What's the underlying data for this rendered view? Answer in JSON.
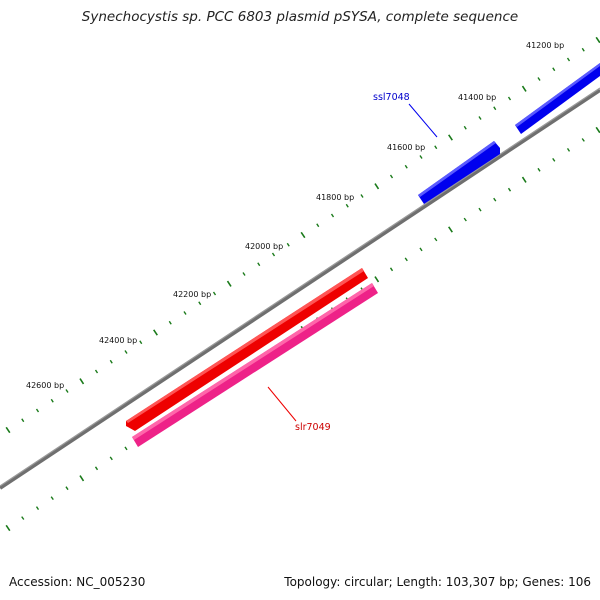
{
  "title": "Synechocystis sp. PCC 6803 plasmid pSYSA, complete sequence",
  "footer": {
    "accession": "Accession: NC_005230",
    "summary": "Topology: circular; Length: 103,307 bp; Genes: 106"
  },
  "colors": {
    "backbone": "#808080",
    "tick": "#1a7a1a",
    "forward_gene": "#0000ee",
    "reverse_gene": "#ee0000",
    "feature_track": "#ee2288"
  },
  "ticks": [
    {
      "label": "41200 bp"
    },
    {
      "label": "41400 bp"
    },
    {
      "label": "41600 bp"
    },
    {
      "label": "41800 bp"
    },
    {
      "label": "42000 bp"
    },
    {
      "label": "42200 bp"
    },
    {
      "label": "42400 bp"
    },
    {
      "label": "42600 bp"
    }
  ],
  "genes": [
    {
      "label": "ssl7048",
      "strand": "forward"
    },
    {
      "label": "slr7049",
      "strand": "reverse"
    }
  ]
}
